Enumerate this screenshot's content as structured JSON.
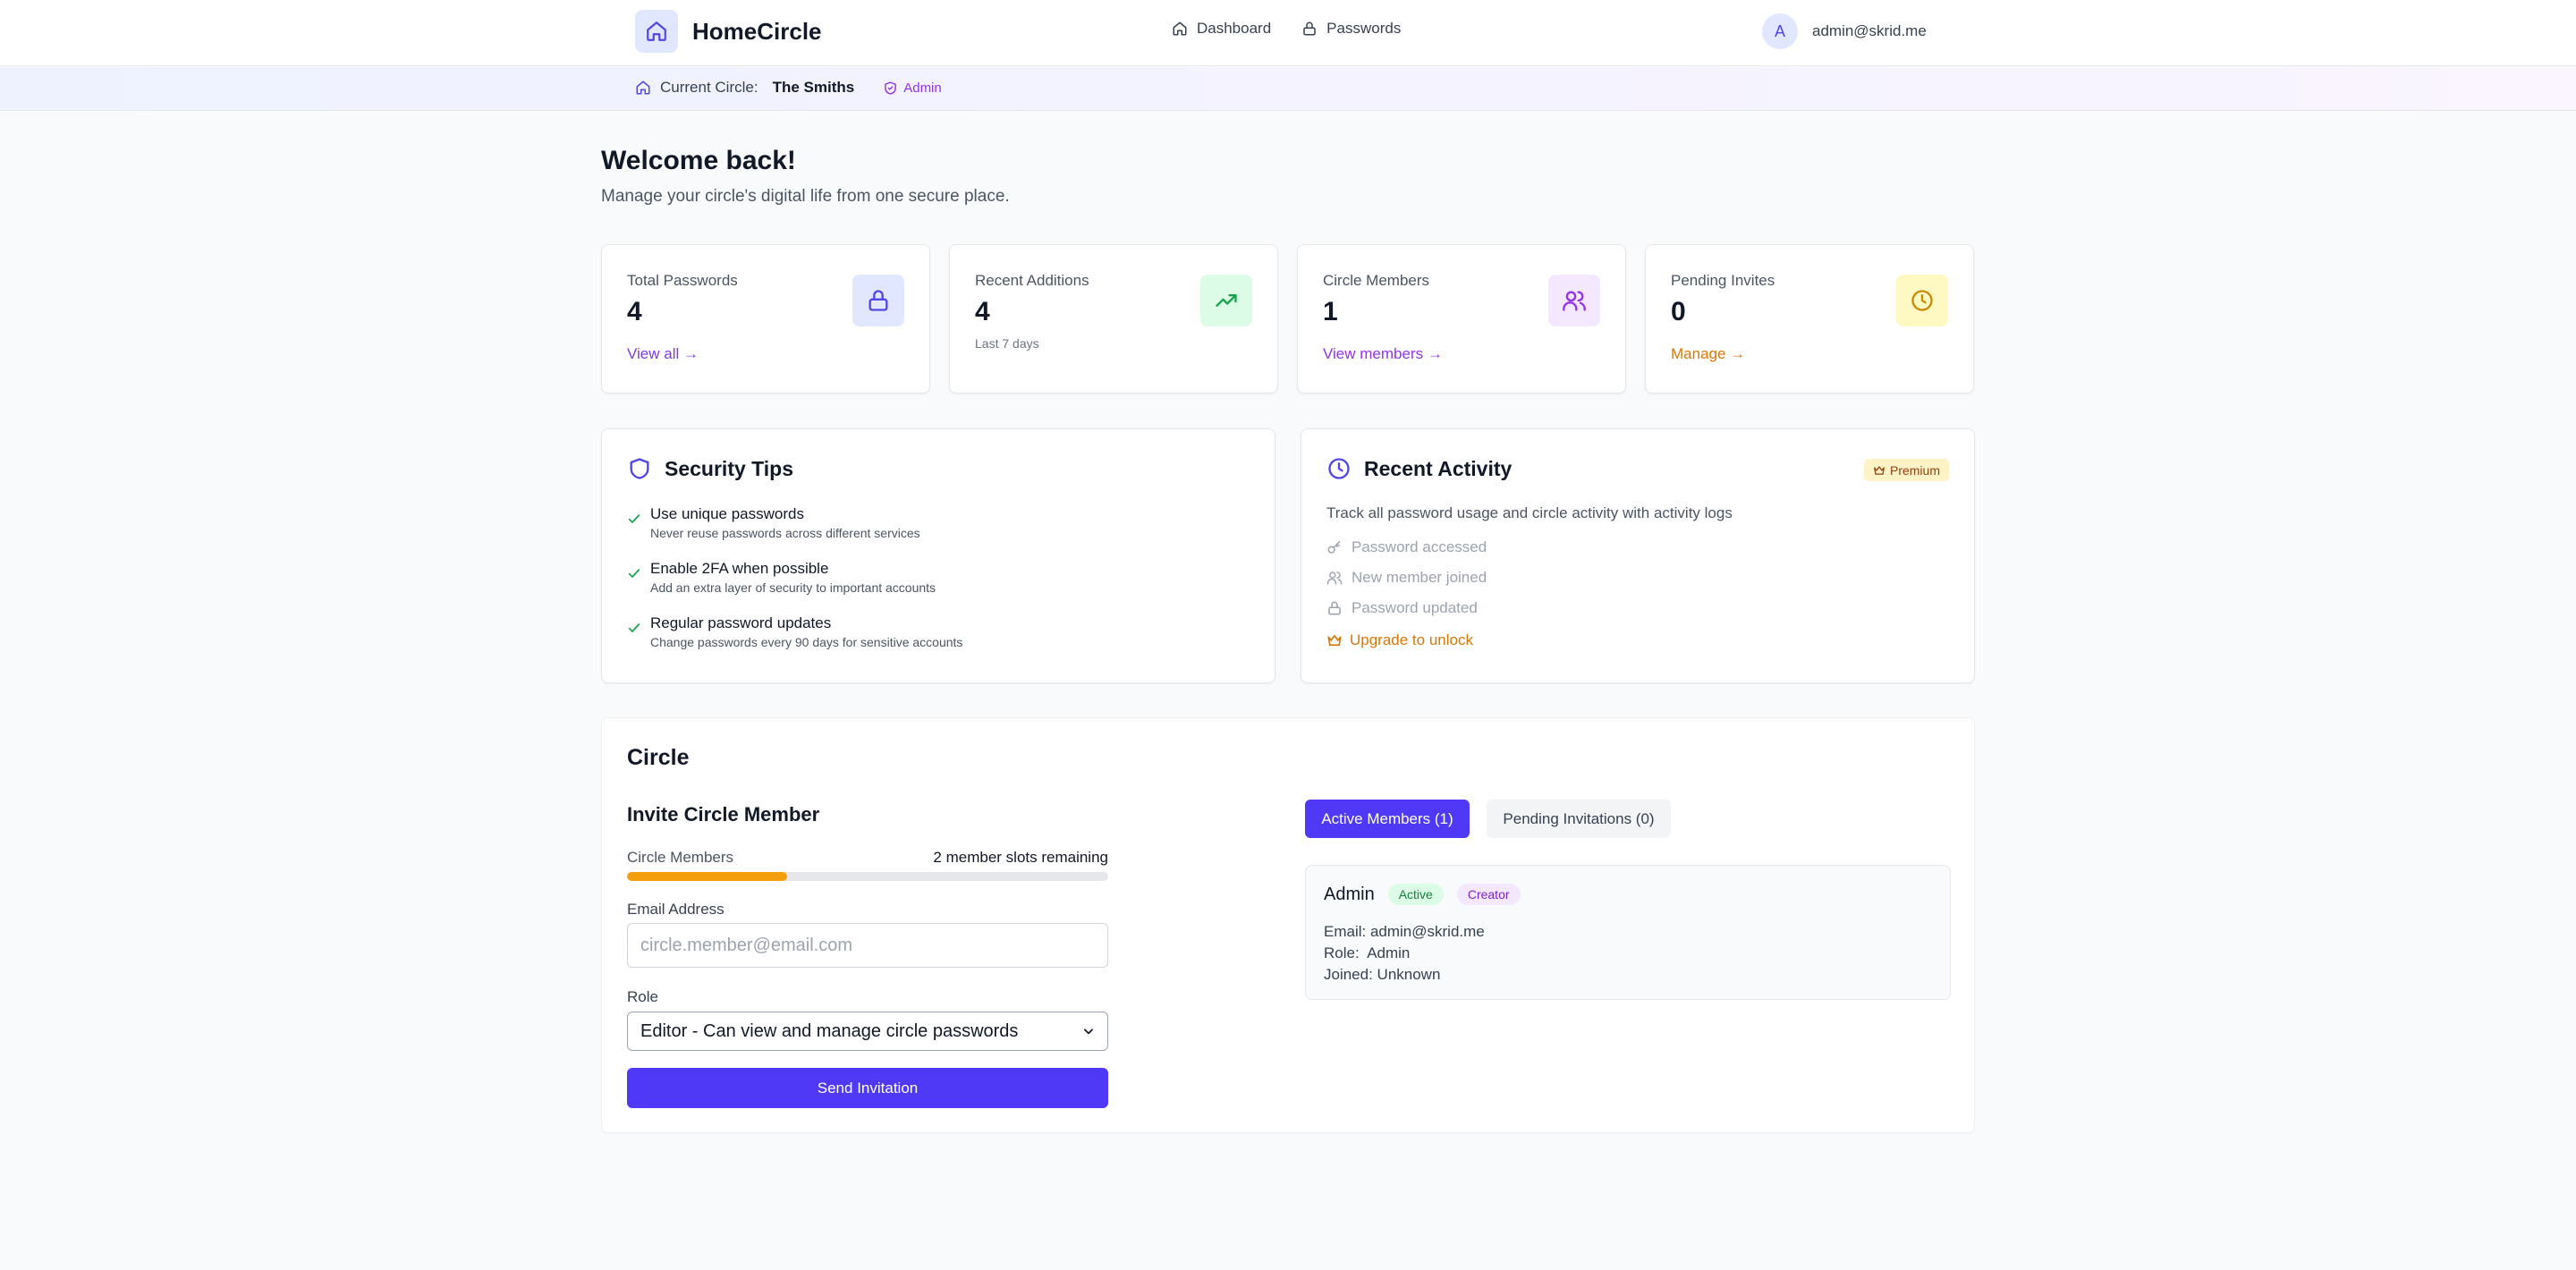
{
  "app": {
    "name": "HomeCircle",
    "user_initial": "A",
    "user_email": "admin@skrid.me",
    "nav": [
      {
        "label": "Dashboard",
        "icon": "home-icon"
      },
      {
        "label": "Passwords",
        "icon": "lock-icon"
      }
    ]
  },
  "circle_bar": {
    "label": "Current Circle:",
    "name": "The Smiths",
    "role": "Admin"
  },
  "welcome": {
    "title": "Welcome back!",
    "subtitle": "Manage your circle's digital life from one secure place."
  },
  "stats": [
    {
      "label": "Total Passwords",
      "value": "4",
      "link": "View all →",
      "icon": "lock-icon",
      "link_color": "#7c3aed",
      "icon_bg": "#e0e7ff",
      "icon_color": "#4f46e5"
    },
    {
      "label": "Recent Additions",
      "value": "4",
      "note": "Last 7 days",
      "icon": "trending-up-icon",
      "icon_bg": "#dcfce7",
      "icon_color": "#16a34a"
    },
    {
      "label": "Circle Members",
      "value": "1",
      "link": "View members →",
      "icon": "users-icon",
      "link_color": "#9333ea",
      "icon_bg": "#f3e8ff",
      "icon_color": "#9333ea"
    },
    {
      "label": "Pending Invites",
      "value": "0",
      "link": "Manage →",
      "icon": "clock-icon",
      "link_color": "#d97706",
      "icon_bg": "#fef9c3",
      "icon_color": "#ca8a04"
    }
  ],
  "security_tips": {
    "title": "Security Tips",
    "items": [
      {
        "title": "Use unique passwords",
        "desc": "Never reuse passwords across different services"
      },
      {
        "title": "Enable 2FA when possible",
        "desc": "Add an extra layer of security to important accounts"
      },
      {
        "title": "Regular password updates",
        "desc": "Change passwords every 90 days for sensitive accounts"
      }
    ]
  },
  "recent_activity": {
    "title": "Recent Activity",
    "badge": "Premium",
    "description": "Track all password usage and circle activity with activity logs",
    "items": [
      {
        "label": "Password accessed",
        "icon": "key-icon"
      },
      {
        "label": "New member joined",
        "icon": "users-icon"
      },
      {
        "label": "Password updated",
        "icon": "lock-icon"
      }
    ],
    "upgrade": "Upgrade to unlock"
  },
  "circle": {
    "title": "Circle",
    "invite": {
      "title": "Invite Circle Member",
      "members_label": "Circle Members",
      "slots_remaining": "2 member slots remaining",
      "usage_fraction": 0.333,
      "email_label": "Email Address",
      "email_placeholder": "circle.member@email.com",
      "email_value": "",
      "role_label": "Role",
      "role_selected": "Editor - Can view and manage circle passwords",
      "submit": "Send Invitation"
    },
    "tabs": [
      {
        "label": "Active Members (1)",
        "active": true
      },
      {
        "label": "Pending Invitations (0)",
        "active": false
      }
    ],
    "members": [
      {
        "name": "Admin",
        "status": "Active",
        "tag": "Creator",
        "email_line": "Email: admin@skrid.me",
        "role_line": "Role:  Admin",
        "joined_line": "Joined: Unknown"
      }
    ]
  },
  "colors": {
    "primary": "#4f39f6",
    "progress": "#f59e0b",
    "upgrade": "#d97706",
    "success": "#16a34a"
  }
}
